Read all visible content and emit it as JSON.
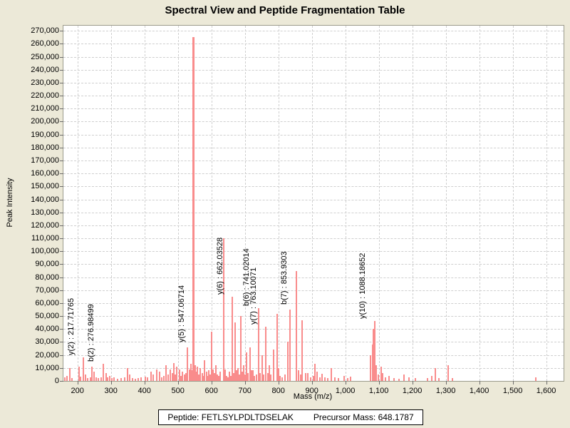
{
  "window": {
    "title": "Spectral View and Peptide Fragmentation Table"
  },
  "footer": {
    "peptide": "Peptide: FETLSYLPDLTDSELAK",
    "precursor": "Precursor Mass: 648.1787"
  },
  "colors": {
    "background": "#ece9d8",
    "plot_background": "#ffffff",
    "peak": "#f98c8c",
    "grid": "#cfcfcf",
    "text": "#000000"
  },
  "chart_data": {
    "type": "bar",
    "title": "Spectral View and Peptide Fragmentation Table",
    "xlabel": "Mass (m/z)",
    "ylabel": "Peak Intensity",
    "xlim": [
      158,
      1652
    ],
    "ylim": [
      0,
      274000
    ],
    "x_ticks": {
      "start": 200,
      "end": 1600,
      "step": 100
    },
    "y_ticks": {
      "start": 0,
      "end": 270000,
      "step": 10000
    },
    "grid": true,
    "legend": "none",
    "annotated_peaks": [
      {
        "mz": 217.71765,
        "intensity": 18000,
        "label": "y(2) : 217.71765"
      },
      {
        "mz": 276.98499,
        "intensity": 13000,
        "label": "b(2) : 276.98499"
      },
      {
        "mz": 547.06714,
        "intensity": 265000,
        "label": "y(5) : 547.06714",
        "label_base": 28000
      },
      {
        "mz": 662.03528,
        "intensity": 65000,
        "label": "y(6) : 662.03528"
      },
      {
        "mz": 741.02014,
        "intensity": 56000,
        "label": "b(6) : 741.02014"
      },
      {
        "mz": 763.10071,
        "intensity": 42000,
        "label": "y(7) : 763.10071"
      },
      {
        "mz": 853.9303,
        "intensity": 85000,
        "label": "b(7) : 853.9303",
        "label_base": 57000
      },
      {
        "mz": 1088.18652,
        "intensity": 46000,
        "label": "y(10) : 1088.18652"
      }
    ],
    "peaks": [
      [
        163,
        2500
      ],
      [
        168,
        4000
      ],
      [
        177,
        10000
      ],
      [
        183,
        2000
      ],
      [
        205,
        11000
      ],
      [
        210,
        3500
      ],
      [
        224,
        5000
      ],
      [
        230,
        2000
      ],
      [
        238,
        3000
      ],
      [
        243,
        11000
      ],
      [
        249,
        7000
      ],
      [
        256,
        2500
      ],
      [
        262,
        2000
      ],
      [
        270,
        2500
      ],
      [
        285,
        6000
      ],
      [
        290,
        3000
      ],
      [
        297,
        4000
      ],
      [
        303,
        2000
      ],
      [
        310,
        3000
      ],
      [
        320,
        1500
      ],
      [
        330,
        2000
      ],
      [
        341,
        2500
      ],
      [
        349,
        10000
      ],
      [
        356,
        5000
      ],
      [
        365,
        2000
      ],
      [
        374,
        1500
      ],
      [
        382,
        2000
      ],
      [
        391,
        3000
      ],
      [
        403,
        3500
      ],
      [
        410,
        2500
      ],
      [
        419,
        7000
      ],
      [
        427,
        5000
      ],
      [
        436,
        9000
      ],
      [
        446,
        7000
      ],
      [
        452,
        3000
      ],
      [
        458,
        4000
      ],
      [
        465,
        12000
      ],
      [
        471,
        5000
      ],
      [
        478,
        9000
      ],
      [
        483,
        6000
      ],
      [
        487,
        14000
      ],
      [
        492,
        5000
      ],
      [
        497,
        11000
      ],
      [
        505,
        9000
      ],
      [
        510,
        4000
      ],
      [
        514,
        7000
      ],
      [
        519,
        5000
      ],
      [
        524,
        6000
      ],
      [
        529,
        26000
      ],
      [
        534,
        9000
      ],
      [
        540,
        13000
      ],
      [
        543,
        8000
      ],
      [
        551,
        12000
      ],
      [
        555,
        7000
      ],
      [
        559,
        11000
      ],
      [
        563,
        5000
      ],
      [
        567,
        10000
      ],
      [
        572,
        6000
      ],
      [
        576,
        4000
      ],
      [
        580,
        16000
      ],
      [
        585,
        7000
      ],
      [
        589,
        4000
      ],
      [
        593,
        8000
      ],
      [
        597,
        5000
      ],
      [
        601,
        38000
      ],
      [
        605,
        9000
      ],
      [
        609,
        6000
      ],
      [
        614,
        12000
      ],
      [
        618,
        5000
      ],
      [
        622,
        4000
      ],
      [
        627,
        7000
      ],
      [
        636,
        110000
      ],
      [
        641,
        9000
      ],
      [
        645,
        4000
      ],
      [
        650,
        3000
      ],
      [
        654,
        7000
      ],
      [
        658,
        4000
      ],
      [
        667,
        6000
      ],
      [
        671,
        45000
      ],
      [
        675,
        8000
      ],
      [
        679,
        10000
      ],
      [
        684,
        5000
      ],
      [
        688,
        50000
      ],
      [
        692,
        7000
      ],
      [
        696,
        12000
      ],
      [
        700,
        5000
      ],
      [
        705,
        22000
      ],
      [
        710,
        6000
      ],
      [
        715,
        26000
      ],
      [
        719,
        8000
      ],
      [
        724,
        8000
      ],
      [
        729,
        4000
      ],
      [
        734,
        5000
      ],
      [
        746,
        6000
      ],
      [
        751,
        20000
      ],
      [
        756,
        5000
      ],
      [
        768,
        6000
      ],
      [
        773,
        12000
      ],
      [
        778,
        5000
      ],
      [
        785,
        24000
      ],
      [
        796,
        52000
      ],
      [
        800,
        10000
      ],
      [
        806,
        4000
      ],
      [
        812,
        3000
      ],
      [
        820,
        5000
      ],
      [
        828,
        30000
      ],
      [
        835,
        55000
      ],
      [
        861,
        8000
      ],
      [
        866,
        5000
      ],
      [
        872,
        47000
      ],
      [
        881,
        6000
      ],
      [
        889,
        6000
      ],
      [
        896,
        3000
      ],
      [
        904,
        4000
      ],
      [
        910,
        13000
      ],
      [
        916,
        7000
      ],
      [
        924,
        3000
      ],
      [
        931,
        5500
      ],
      [
        940,
        2500
      ],
      [
        948,
        2000
      ],
      [
        959,
        10000
      ],
      [
        968,
        3000
      ],
      [
        980,
        2000
      ],
      [
        997,
        4000
      ],
      [
        1008,
        2000
      ],
      [
        1016,
        3500
      ],
      [
        1075,
        20000
      ],
      [
        1081,
        28000
      ],
      [
        1084,
        40000
      ],
      [
        1093,
        12000
      ],
      [
        1099,
        5000
      ],
      [
        1107,
        11000
      ],
      [
        1112,
        6000
      ],
      [
        1120,
        3000
      ],
      [
        1130,
        4000
      ],
      [
        1145,
        2000
      ],
      [
        1160,
        1800
      ],
      [
        1175,
        5000
      ],
      [
        1190,
        3000
      ],
      [
        1210,
        2000
      ],
      [
        1245,
        2000
      ],
      [
        1258,
        4000
      ],
      [
        1268,
        10000
      ],
      [
        1280,
        2000
      ],
      [
        1307,
        12000
      ],
      [
        1320,
        2000
      ],
      [
        1569,
        2500
      ]
    ]
  }
}
